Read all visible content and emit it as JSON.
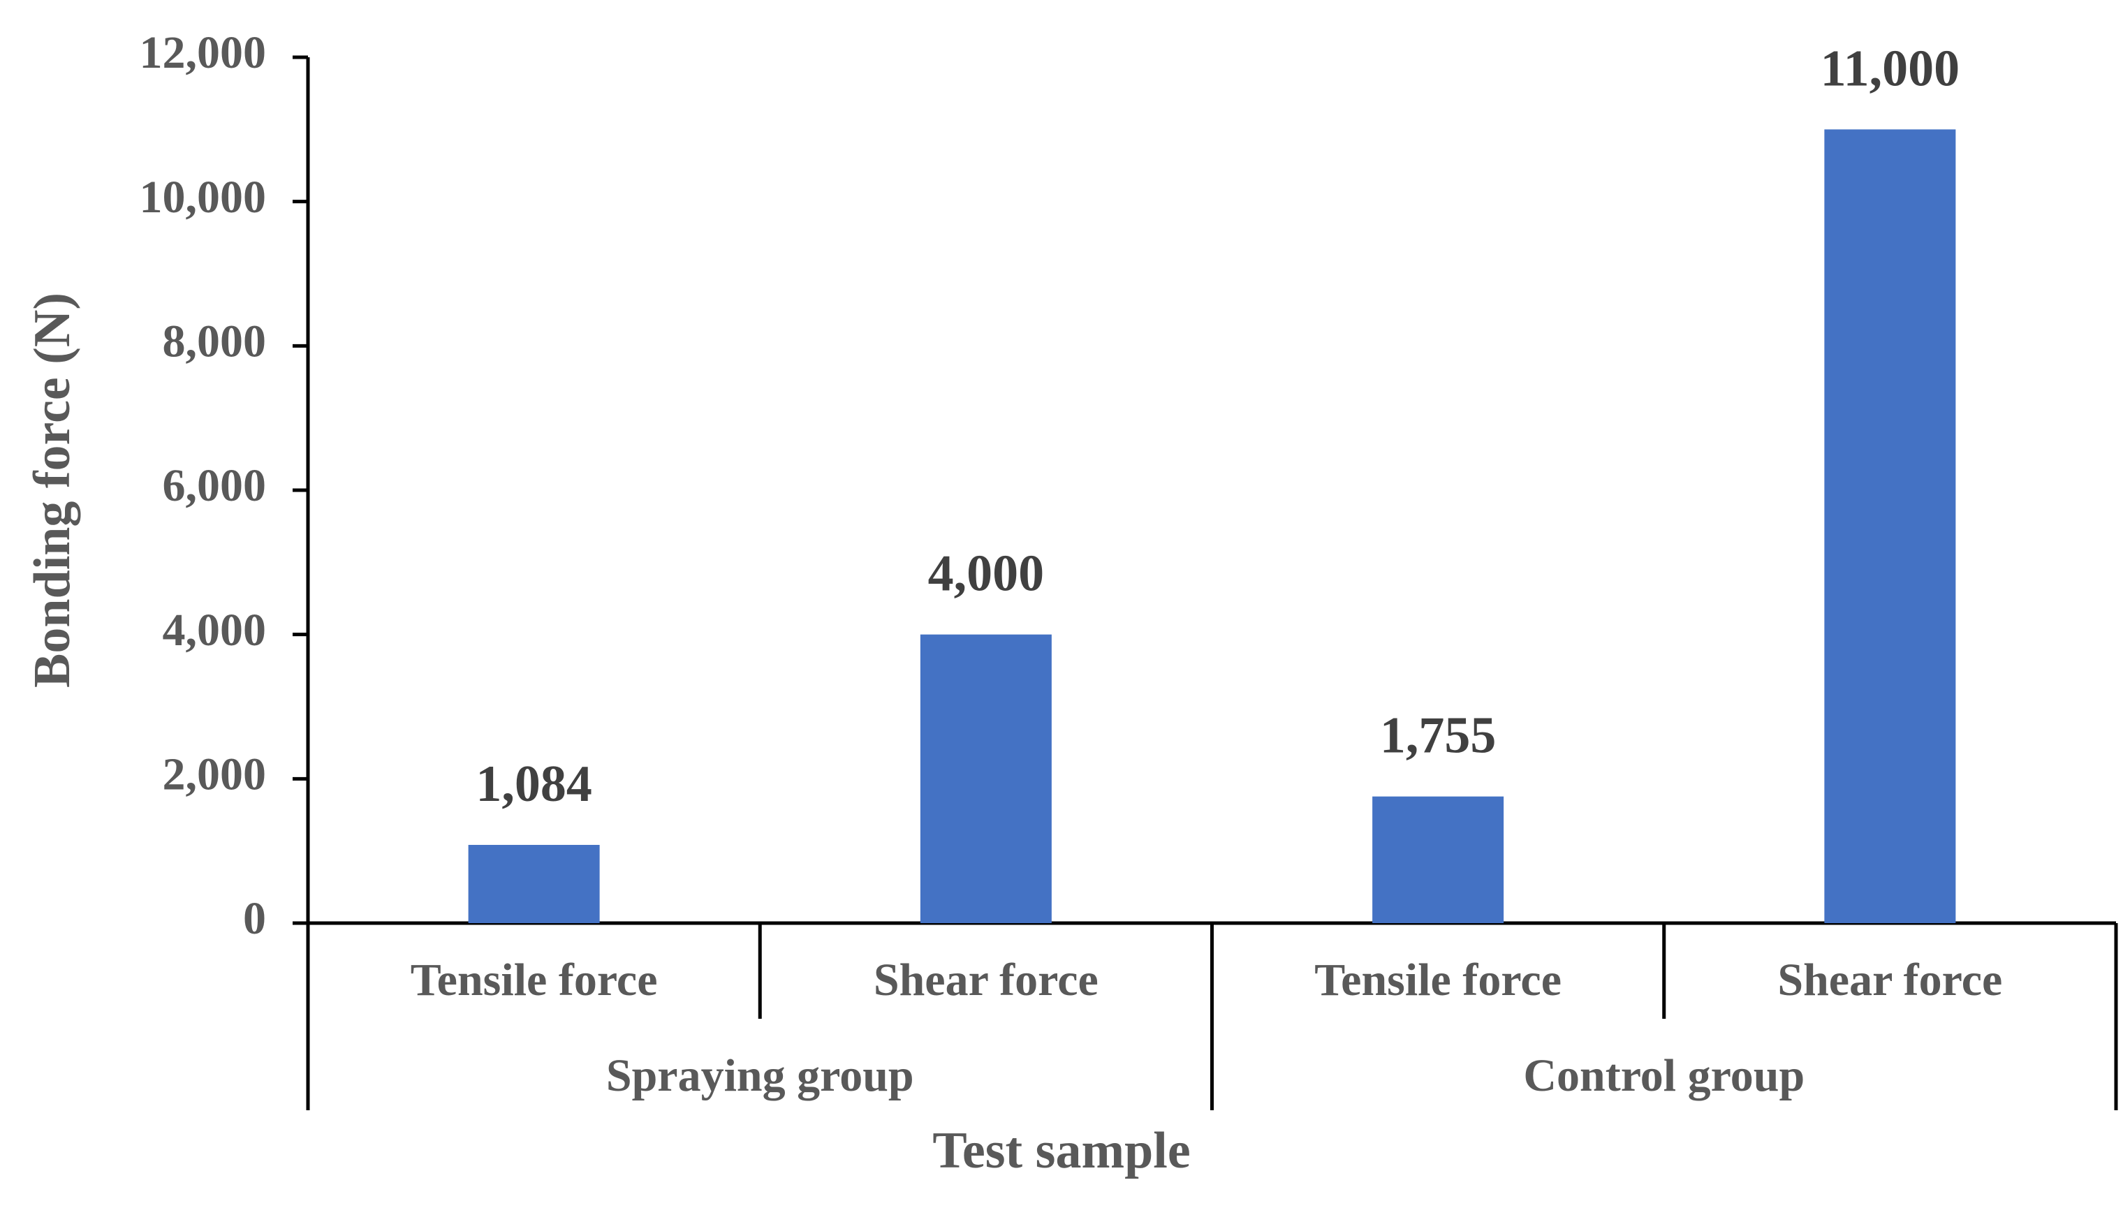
{
  "chart_data": {
    "type": "bar",
    "x_label": "Test sample",
    "y_label": "Bonding force (N)",
    "categories": [
      "Tensile force",
      "Shear force",
      "Tensile force",
      "Shear force"
    ],
    "groups": [
      "Spraying group",
      "Control group"
    ],
    "values": [
      1084,
      4000,
      1755,
      11000
    ],
    "value_labels": [
      "1,084",
      "4,000",
      "1,755",
      "11,000"
    ],
    "color": "#4472c4",
    "ylim": [
      0,
      12000
    ],
    "yticks": [
      0,
      {
        "value": 2000,
        "label": "2,000"
      },
      {
        "value": 4000,
        "label": "4,000"
      },
      {
        "value": 6000,
        "label": "6,000"
      },
      {
        "value": 8000,
        "label": "8,000"
      },
      {
        "value": 10000,
        "label": "10,000"
      },
      {
        "value": 12000,
        "label": "12,000"
      }
    ]
  }
}
